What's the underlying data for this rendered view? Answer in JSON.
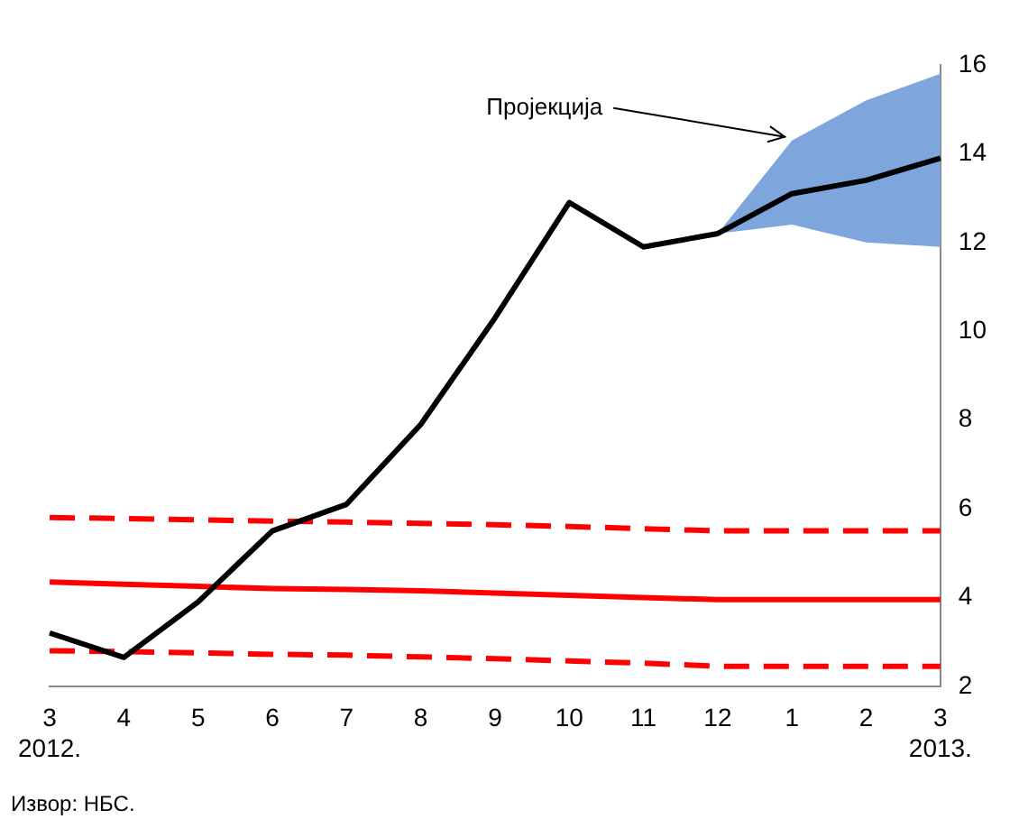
{
  "chart_data": {
    "type": "line",
    "categories": [
      "3\n2012.",
      "4",
      "5",
      "6",
      "7",
      "8",
      "9",
      "10",
      "11",
      "12",
      "1",
      "2",
      "3\n2013."
    ],
    "series": [
      {
        "color": "#000000",
        "values": [
          3.2,
          2.65,
          3.9,
          5.5,
          6.1,
          7.9,
          10.3,
          12.9,
          11.9,
          12.2,
          13.1,
          13.4,
          13.9
        ],
        "lower": [
          null,
          null,
          null,
          null,
          null,
          null,
          null,
          null,
          null,
          12.2,
          12.4,
          12.0,
          11.9
        ],
        "upper": [
          null,
          null,
          null,
          null,
          null,
          null,
          null,
          null,
          null,
          12.2,
          14.3,
          15.2,
          15.8
        ]
      },
      {
        "color": "#ff0000",
        "line_style": "solid",
        "values": [
          4.35,
          4.3,
          4.25,
          4.2,
          4.18,
          4.15,
          4.1,
          4.05,
          4.0,
          3.95,
          3.95,
          3.95,
          3.95
        ]
      },
      {
        "color": "#ff0000",
        "line_style": "dashed",
        "values": [
          5.8,
          5.78,
          5.75,
          5.72,
          5.7,
          5.67,
          5.64,
          5.6,
          5.55,
          5.5,
          5.5,
          5.5,
          5.5
        ]
      },
      {
        "color": "#ff0000",
        "line_style": "dashed",
        "values": [
          2.8,
          2.78,
          2.75,
          2.72,
          2.7,
          2.66,
          2.62,
          2.57,
          2.52,
          2.45,
          2.45,
          2.45,
          2.45
        ]
      }
    ],
    "ylim": [
      2,
      16
    ],
    "yticks": [
      2,
      4,
      6,
      8,
      10,
      12,
      14,
      16
    ],
    "grid": false,
    "legend": false,
    "marker": "none",
    "annotations": [
      {
        "text": "Пројекција",
        "x": "1",
        "y": 14.3
      },
      "Извор: НБС."
    ]
  }
}
